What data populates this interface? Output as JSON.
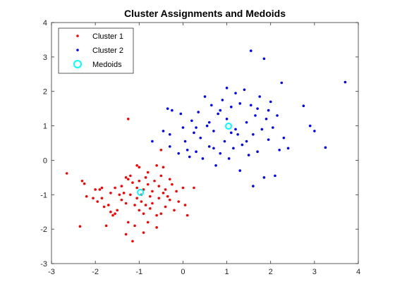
{
  "chart_data": {
    "type": "scatter",
    "title": "Cluster Assignments and Medoids",
    "xlabel": "",
    "ylabel": "",
    "xlim": [
      -3,
      4
    ],
    "ylim": [
      -3,
      4
    ],
    "xticks": [
      -3,
      -2,
      -1,
      0,
      1,
      2,
      3,
      4
    ],
    "yticks": [
      -3,
      -2,
      -1,
      0,
      1,
      2,
      3,
      4
    ],
    "grid": false,
    "legend_position": "top-left",
    "series": [
      {
        "name": "Cluster 1",
        "color": "#ff0000",
        "marker": "dot",
        "points": [
          [
            -2.65,
            -0.38
          ],
          [
            -2.3,
            -0.6
          ],
          [
            -2.25,
            -0.68
          ],
          [
            -2.2,
            -1.05
          ],
          [
            -2.35,
            -1.92
          ],
          [
            -2.05,
            -1.1
          ],
          [
            -1.9,
            -0.85
          ],
          [
            -1.85,
            -0.8
          ],
          [
            -1.85,
            -1.1
          ],
          [
            -1.8,
            -1.35
          ],
          [
            -1.75,
            -1.9
          ],
          [
            -1.7,
            -1.3
          ],
          [
            -1.65,
            -1.5
          ],
          [
            -1.6,
            -1.6
          ],
          [
            -1.55,
            -1.55
          ],
          [
            -1.55,
            -0.8
          ],
          [
            -1.5,
            -1.45
          ],
          [
            -1.45,
            -1.0
          ],
          [
            -1.4,
            -0.75
          ],
          [
            -1.4,
            -1.15
          ],
          [
            -1.35,
            -0.95
          ],
          [
            -1.3,
            -0.5
          ],
          [
            -1.3,
            -1.25
          ],
          [
            -1.3,
            -2.15
          ],
          [
            -1.25,
            -1.8
          ],
          [
            -1.25,
            -0.55
          ],
          [
            -1.2,
            -0.45
          ],
          [
            -1.2,
            -1.0
          ],
          [
            -1.15,
            -0.65
          ],
          [
            -1.15,
            -2.35
          ],
          [
            -1.1,
            -1.3
          ],
          [
            -1.1,
            -1.9
          ],
          [
            -1.05,
            -1.1
          ],
          [
            -1.05,
            -0.8
          ],
          [
            -1.0,
            -0.6
          ],
          [
            -1.0,
            -1.45
          ],
          [
            -1.0,
            -0.2
          ],
          [
            -0.95,
            -1.2
          ],
          [
            -0.95,
            -1.0
          ],
          [
            -0.9,
            -0.85
          ],
          [
            -0.9,
            -1.55
          ],
          [
            -0.9,
            -2.1
          ],
          [
            -0.85,
            -0.5
          ],
          [
            -0.85,
            -1.3
          ],
          [
            -0.8,
            -0.7
          ],
          [
            -0.8,
            -1.8
          ],
          [
            -0.75,
            -1.05
          ],
          [
            -0.75,
            -1.4
          ],
          [
            -0.7,
            -0.9
          ],
          [
            -0.7,
            -1.25
          ],
          [
            -0.65,
            -0.6
          ],
          [
            -0.6,
            -1.6
          ],
          [
            -0.6,
            -1.95
          ],
          [
            -0.55,
            -0.75
          ],
          [
            -0.55,
            -1.1
          ],
          [
            -0.5,
            -0.45
          ],
          [
            -0.5,
            -1.55
          ],
          [
            -0.45,
            -0.2
          ],
          [
            -0.45,
            -0.95
          ],
          [
            -0.4,
            -0.85
          ],
          [
            -0.4,
            -1.35
          ],
          [
            -0.35,
            -1.05
          ],
          [
            -0.3,
            -0.55
          ],
          [
            -0.25,
            -0.7
          ],
          [
            -0.2,
            -1.45
          ],
          [
            -0.15,
            -0.9
          ],
          [
            -0.1,
            -1.2
          ],
          [
            0.0,
            -0.8
          ],
          [
            0.05,
            -1.3
          ],
          [
            0.1,
            -1.6
          ],
          [
            -1.25,
            1.2
          ],
          [
            -0.5,
            0.3
          ],
          [
            -0.8,
            -0.35
          ],
          [
            -1.05,
            -0.15
          ],
          [
            -1.65,
            -0.95
          ],
          [
            -2.0,
            -0.85
          ],
          [
            -1.95,
            -1.2
          ],
          [
            -0.6,
            -0.15
          ],
          [
            0.25,
            -0.8
          ],
          [
            -0.3,
            -1.15
          ]
        ]
      },
      {
        "name": "Cluster 2",
        "color": "#0000ff",
        "marker": "dot",
        "points": [
          [
            -0.7,
            0.55
          ],
          [
            -0.45,
            0.85
          ],
          [
            -0.35,
            1.5
          ],
          [
            -0.3,
            0.75
          ],
          [
            -0.25,
            1.45
          ],
          [
            -0.3,
            0.4
          ],
          [
            -0.1,
            0.2
          ],
          [
            -0.05,
            1.35
          ],
          [
            0.0,
            0.95
          ],
          [
            0.05,
            0.55
          ],
          [
            0.1,
            0.3
          ],
          [
            0.15,
            0.1
          ],
          [
            0.2,
            1.15
          ],
          [
            0.25,
            0.8
          ],
          [
            0.3,
            0.25
          ],
          [
            0.35,
            1.4
          ],
          [
            0.4,
            0.65
          ],
          [
            0.45,
            0.05
          ],
          [
            0.5,
            1.85
          ],
          [
            0.55,
            1.0
          ],
          [
            0.6,
            0.4
          ],
          [
            0.65,
            1.6
          ],
          [
            0.7,
            0.85
          ],
          [
            0.75,
            -0.15
          ],
          [
            0.8,
            1.35
          ],
          [
            0.85,
            0.2
          ],
          [
            0.9,
            1.75
          ],
          [
            0.95,
            0.55
          ],
          [
            1.0,
            2.1
          ],
          [
            1.0,
            1.2
          ],
          [
            1.05,
            0.05
          ],
          [
            1.1,
            1.55
          ],
          [
            1.15,
            0.35
          ],
          [
            1.2,
            1.95
          ],
          [
            1.25,
            0.75
          ],
          [
            1.3,
            -0.3
          ],
          [
            1.3,
            1.65
          ],
          [
            1.35,
            0.45
          ],
          [
            1.4,
            2.05
          ],
          [
            1.45,
            1.1
          ],
          [
            1.5,
            0.15
          ],
          [
            1.55,
            3.18
          ],
          [
            1.55,
            1.6
          ],
          [
            1.6,
            0.75
          ],
          [
            1.6,
            -0.75
          ],
          [
            1.65,
            1.3
          ],
          [
            1.7,
            0.25
          ],
          [
            1.75,
            1.85
          ],
          [
            1.8,
            0.9
          ],
          [
            1.85,
            -0.5
          ],
          [
            1.85,
            2.95
          ],
          [
            1.9,
            1.2
          ],
          [
            1.95,
            0.6
          ],
          [
            2.0,
            1.7
          ],
          [
            2.05,
            0.95
          ],
          [
            2.1,
            -0.45
          ],
          [
            2.15,
            1.3
          ],
          [
            2.2,
            0.3
          ],
          [
            2.25,
            2.25
          ],
          [
            2.3,
            0.65
          ],
          [
            2.4,
            0.35
          ],
          [
            2.75,
            1.58
          ],
          [
            2.9,
            1.0
          ],
          [
            3.0,
            0.85
          ],
          [
            3.25,
            0.37
          ],
          [
            3.7,
            2.27
          ],
          [
            0.3,
            0.95
          ],
          [
            0.6,
            1.1
          ],
          [
            1.2,
            0.9
          ],
          [
            1.45,
            0.55
          ],
          [
            0.85,
            1.45
          ],
          [
            1.95,
            1.45
          ],
          [
            0.7,
            0.35
          ],
          [
            1.1,
            0.8
          ],
          [
            1.7,
            1.5
          ]
        ]
      },
      {
        "name": "Medoids",
        "color": "#00ffff",
        "marker": "circle",
        "points": [
          [
            -0.97,
            -0.93
          ],
          [
            1.04,
            0.99
          ]
        ]
      }
    ]
  }
}
